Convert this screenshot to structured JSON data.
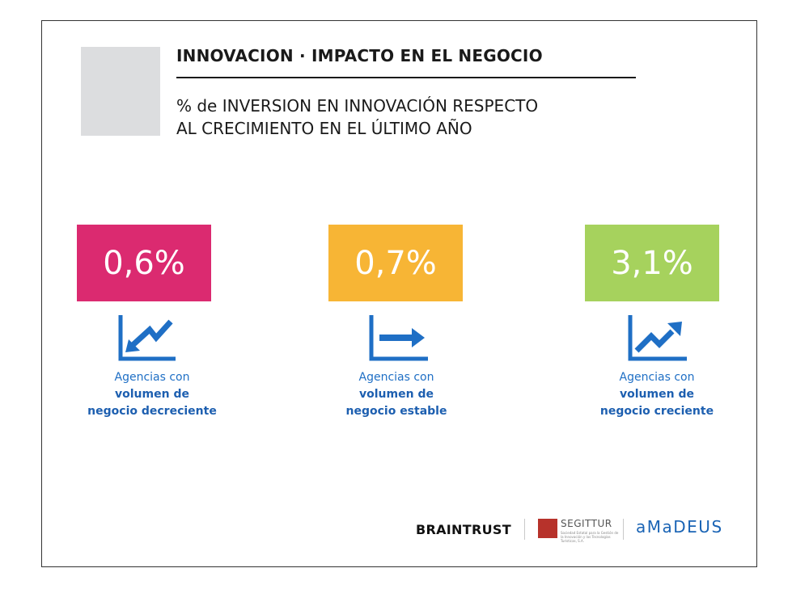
{
  "header": {
    "title": "INNOVACION · IMPACTO EN EL NEGOCIO",
    "subtitle_line1": "% de INVERSION EN INNOVACIÓN RESPECTO",
    "subtitle_line2": "AL CRECIMIENTO EN EL ÚLTIMO AÑO"
  },
  "stats": [
    {
      "value": "0,6%",
      "color": "#db2a70",
      "icon": "trend-down-icon",
      "caption_line1": "Agencias con",
      "caption_line2": "volumen de",
      "caption_line3": "negocio decreciente"
    },
    {
      "value": "0,7%",
      "color": "#f7b535",
      "icon": "trend-flat-icon",
      "caption_line1": "Agencias con",
      "caption_line2": "volumen de",
      "caption_line3": "negocio estable"
    },
    {
      "value": "3,1%",
      "color": "#a6d25d",
      "icon": "trend-up-icon",
      "caption_line1": "Agencias con",
      "caption_line2": "volumen de",
      "caption_line3": "negocio creciente"
    }
  ],
  "footer": {
    "logo_braintrust": "BRAINTRUST",
    "logo_segittur": "SEGITTUR",
    "logo_segittur_small": "Sociedad Estatal para la Gestión de la Innovación y las Tecnologías Turísticas, S.A.",
    "logo_amadeus": "aMaDEUS"
  },
  "colors": {
    "accent_blue": "#1f6fc5",
    "frame": "#333333",
    "gray_block": "#dcdddf"
  }
}
